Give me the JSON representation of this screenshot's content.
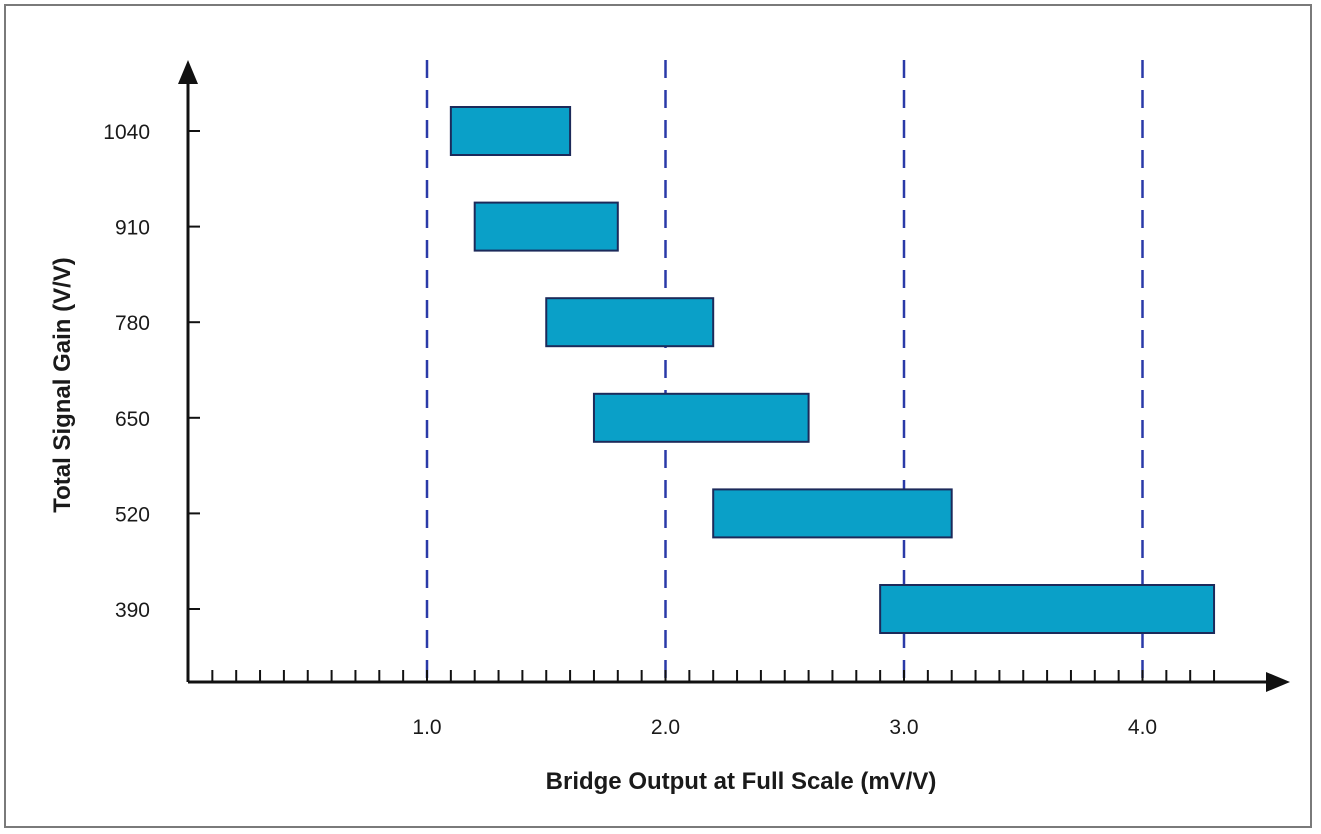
{
  "chart_data": {
    "type": "bar",
    "orientation": "horizontal-range",
    "title": "",
    "xlabel": "Bridge Output at Full Scale (mV/V)",
    "ylabel": "Total Signal Gain (V/V)",
    "x_ticks": [
      "1.0",
      "2.0",
      "3.0",
      "4.0"
    ],
    "xlim": [
      0.0,
      4.5
    ],
    "categories": [
      "1040",
      "910",
      "780",
      "650",
      "520",
      "390"
    ],
    "ranges": [
      {
        "gain": "1040",
        "start": 1.1,
        "end": 1.6
      },
      {
        "gain": "910",
        "start": 1.2,
        "end": 1.8
      },
      {
        "gain": "780",
        "start": 1.5,
        "end": 2.2
      },
      {
        "gain": "650",
        "start": 1.7,
        "end": 2.6
      },
      {
        "gain": "520",
        "start": 2.2,
        "end": 3.2
      },
      {
        "gain": "390",
        "start": 2.9,
        "end": 4.3
      }
    ],
    "minor_tick_step": 0.1,
    "grid": "dashed vertical lines at major ticks",
    "legend": "none"
  },
  "colors": {
    "bar_fill": "#0aa0c8",
    "bar_stroke": "#1c2a5a",
    "grid": "#2a3aa8",
    "axis": "#111111",
    "frame": "#7a7a7a"
  }
}
